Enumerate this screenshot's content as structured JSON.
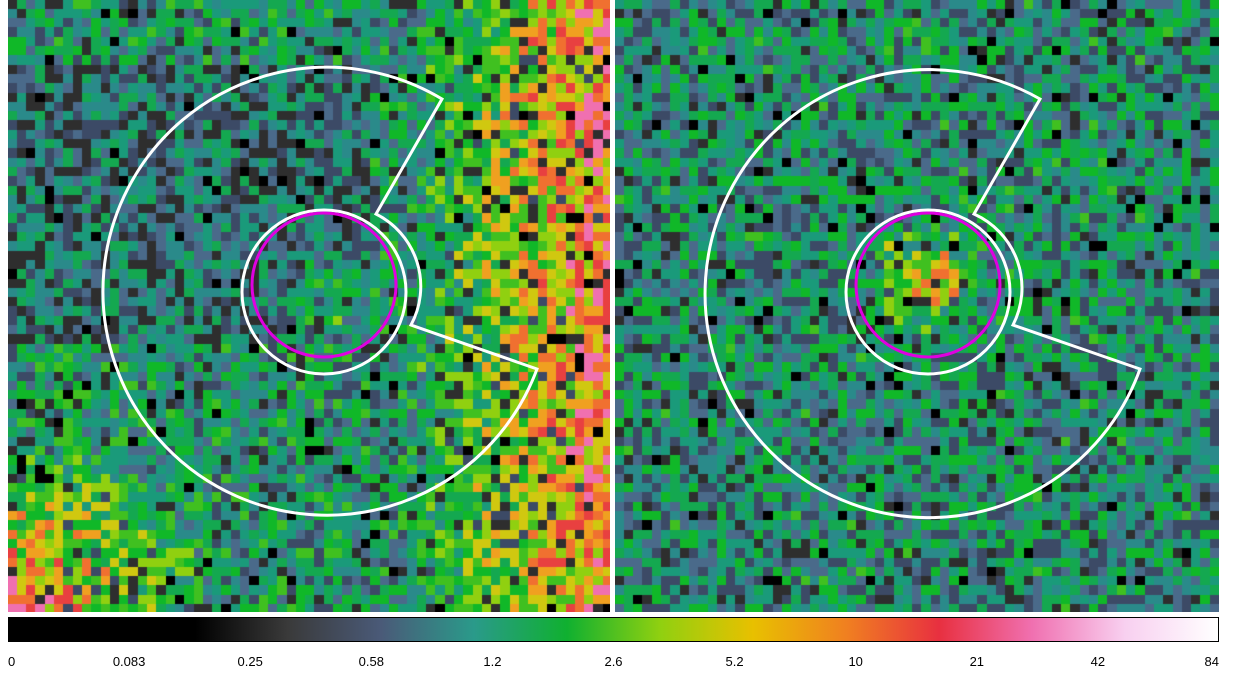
{
  "image": {
    "panels": [
      {
        "id": "left",
        "description": "",
        "background_gradient": "orange-red on right and bottom-left"
      },
      {
        "id": "right",
        "background_gradient": "uniform noise"
      }
    ],
    "colors": {
      "source_circle": "#e000e0",
      "region_outline": "#ffffff"
    }
  },
  "colorbar": {
    "ticks": [
      "0",
      "0.083",
      "0.25",
      "0.58",
      "1.2",
      "2.6",
      "5.2",
      "10",
      "21",
      "42",
      "84"
    ],
    "stops": [
      "#000000",
      "#000000",
      "#000000",
      "#3a3a3a",
      "#4a5a78",
      "#2a9a8a",
      "#10b030",
      "#90d010",
      "#e8c000",
      "#f08020",
      "#e83040",
      "#f070b0",
      "#f8d0f0",
      "#ffffff"
    ]
  }
}
